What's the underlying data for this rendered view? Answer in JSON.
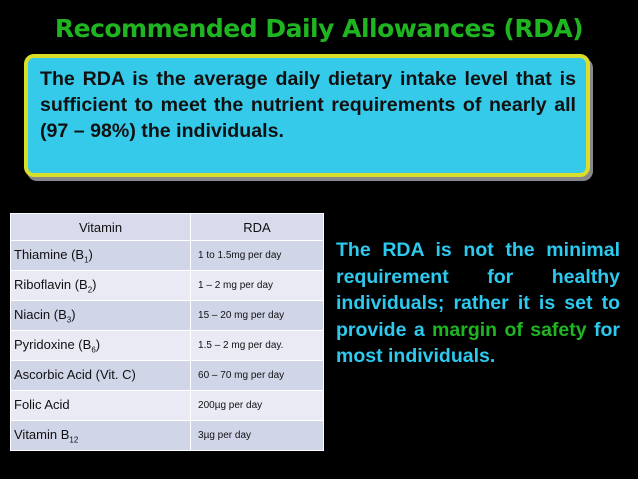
{
  "title": "Recommended Daily Allowances (RDA)",
  "definition": "The RDA is the average daily dietary intake level that is sufficient to meet the nutrient requirements of nearly all (97 – 98%) the individuals.",
  "table": {
    "headers": [
      "Vitamin",
      "RDA"
    ],
    "rows": [
      {
        "name": "Thiamine (B",
        "sub": "1",
        "suffix": ")",
        "rda": "1 to 1.5mg per day"
      },
      {
        "name": "Riboflavin (B",
        "sub": "2",
        "suffix": ")",
        "rda": "1 – 2 mg per day"
      },
      {
        "name": "Niacin (B",
        "sub": "3",
        "suffix": ")",
        "rda": "15 – 20 mg per day"
      },
      {
        "name": "Pyridoxine (B",
        "sub": "6",
        "suffix": ")",
        "rda": "1.5 – 2 mg per day."
      },
      {
        "name": "Ascorbic Acid (Vit. C)",
        "sub": "",
        "suffix": "",
        "rda": "60 – 70 mg per day"
      },
      {
        "name": "Folic Acid",
        "sub": "",
        "suffix": "",
        "rda": "200µg per day"
      },
      {
        "name": "Vitamin B",
        "sub": "12",
        "suffix": "",
        "rda": "3µg  per day"
      }
    ]
  },
  "note": {
    "part1": "The RDA is not the minimal requirement for healthy individuals; rather it is set to provide a ",
    "highlight": "margin of safety",
    "part2": " for most individuals."
  },
  "colors": {
    "background": "#000000",
    "title": "#1fb521",
    "box_fill": "#35c9ea",
    "box_border": "#d9de2a",
    "note_text": "#2dc9ef",
    "highlight": "#1fb521"
  }
}
